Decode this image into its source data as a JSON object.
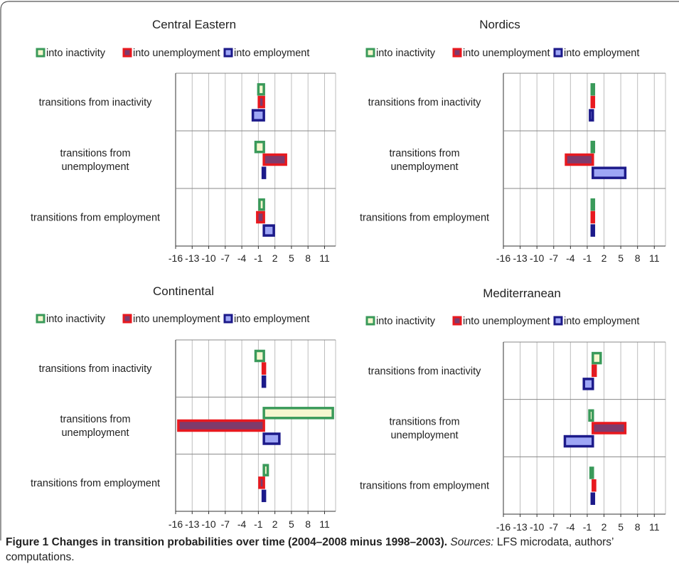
{
  "figure": {
    "caption_title": "Figure 1 Changes in transition probabilities over time (2004–2008 minus 1998–2003).",
    "caption_sources_label": "Sources:",
    "caption_sources_text": "LFS microdata, authors’ computations."
  },
  "colors": {
    "inactivity_border": "#3a9a5a",
    "inactivity_fill": "#f6f7cf",
    "unemployment_border": "#e8191f",
    "unemployment_fill": "#7e3b6c",
    "employment_border": "#1c1a8a",
    "employment_fill": "#9ea6f5",
    "grid": "#bdbdbd",
    "separator": "#888888"
  },
  "chart_data": [
    {
      "type": "bar",
      "orientation": "horizontal",
      "title": "Central Eastern",
      "categories": [
        "transitions from inactivity",
        "transitions from unemployment",
        "transitions from employment"
      ],
      "series": [
        {
          "name": "into inactivity",
          "values": [
            -1.0,
            -1.5,
            -0.8
          ]
        },
        {
          "name": "into unemployment",
          "values": [
            -0.9,
            4.0,
            -1.2
          ]
        },
        {
          "name": "into employment",
          "values": [
            -2.0,
            0.1,
            1.8
          ]
        }
      ],
      "xlim": [
        -16,
        13
      ],
      "xticks": [
        "-16",
        "-13",
        "-10",
        "-7",
        "-4",
        "-1",
        "2",
        "5",
        "8",
        "11"
      ],
      "legend_position": "top"
    },
    {
      "type": "bar",
      "orientation": "horizontal",
      "title": "Nordics",
      "categories": [
        "transitions from inactivity",
        "transitions from unemployment",
        "transitions from employment"
      ],
      "series": [
        {
          "name": "into inactivity",
          "values": [
            0.2,
            -0.3,
            0.2
          ]
        },
        {
          "name": "into unemployment",
          "values": [
            0.1,
            -4.8,
            -0.2
          ]
        },
        {
          "name": "into employment",
          "values": [
            -0.5,
            5.8,
            0.1
          ]
        }
      ],
      "xlim": [
        -16,
        13
      ],
      "xticks": [
        "-16",
        "-13",
        "-10",
        "-7",
        "-4",
        "-1",
        "2",
        "5",
        "8",
        "11"
      ],
      "legend_position": "top"
    },
    {
      "type": "bar",
      "orientation": "horizontal",
      "title": "Continental",
      "categories": [
        "transitions from inactivity",
        "transitions from unemployment",
        "transitions from employment"
      ],
      "series": [
        {
          "name": "into inactivity",
          "values": [
            -1.5,
            12.5,
            0.7
          ]
        },
        {
          "name": "into unemployment",
          "values": [
            0.1,
            -15.5,
            -0.8
          ]
        },
        {
          "name": "into employment",
          "values": [
            0.3,
            2.8,
            0.2
          ]
        }
      ],
      "xlim": [
        -16,
        13
      ],
      "xticks": [
        "-16",
        "-13",
        "-10",
        "-7",
        "-4",
        "-1",
        "2",
        "5",
        "8",
        "11"
      ],
      "legend_position": "top"
    },
    {
      "type": "bar",
      "orientation": "horizontal",
      "title": "Mediterranean",
      "categories": [
        "transitions from inactivity",
        "transitions from unemployment",
        "transitions from employment"
      ],
      "series": [
        {
          "name": "into inactivity",
          "values": [
            1.4,
            -0.6,
            -0.4
          ]
        },
        {
          "name": "into unemployment",
          "values": [
            0.5,
            5.8,
            0.4
          ]
        },
        {
          "name": "into employment",
          "values": [
            -1.6,
            -5.0,
            0.1
          ]
        }
      ],
      "xlim": [
        -16,
        13
      ],
      "xticks": [
        "-16",
        "-13",
        "-10",
        "-7",
        "-4",
        "-1",
        "2",
        "5",
        "8",
        "11"
      ],
      "legend_position": "top"
    }
  ]
}
